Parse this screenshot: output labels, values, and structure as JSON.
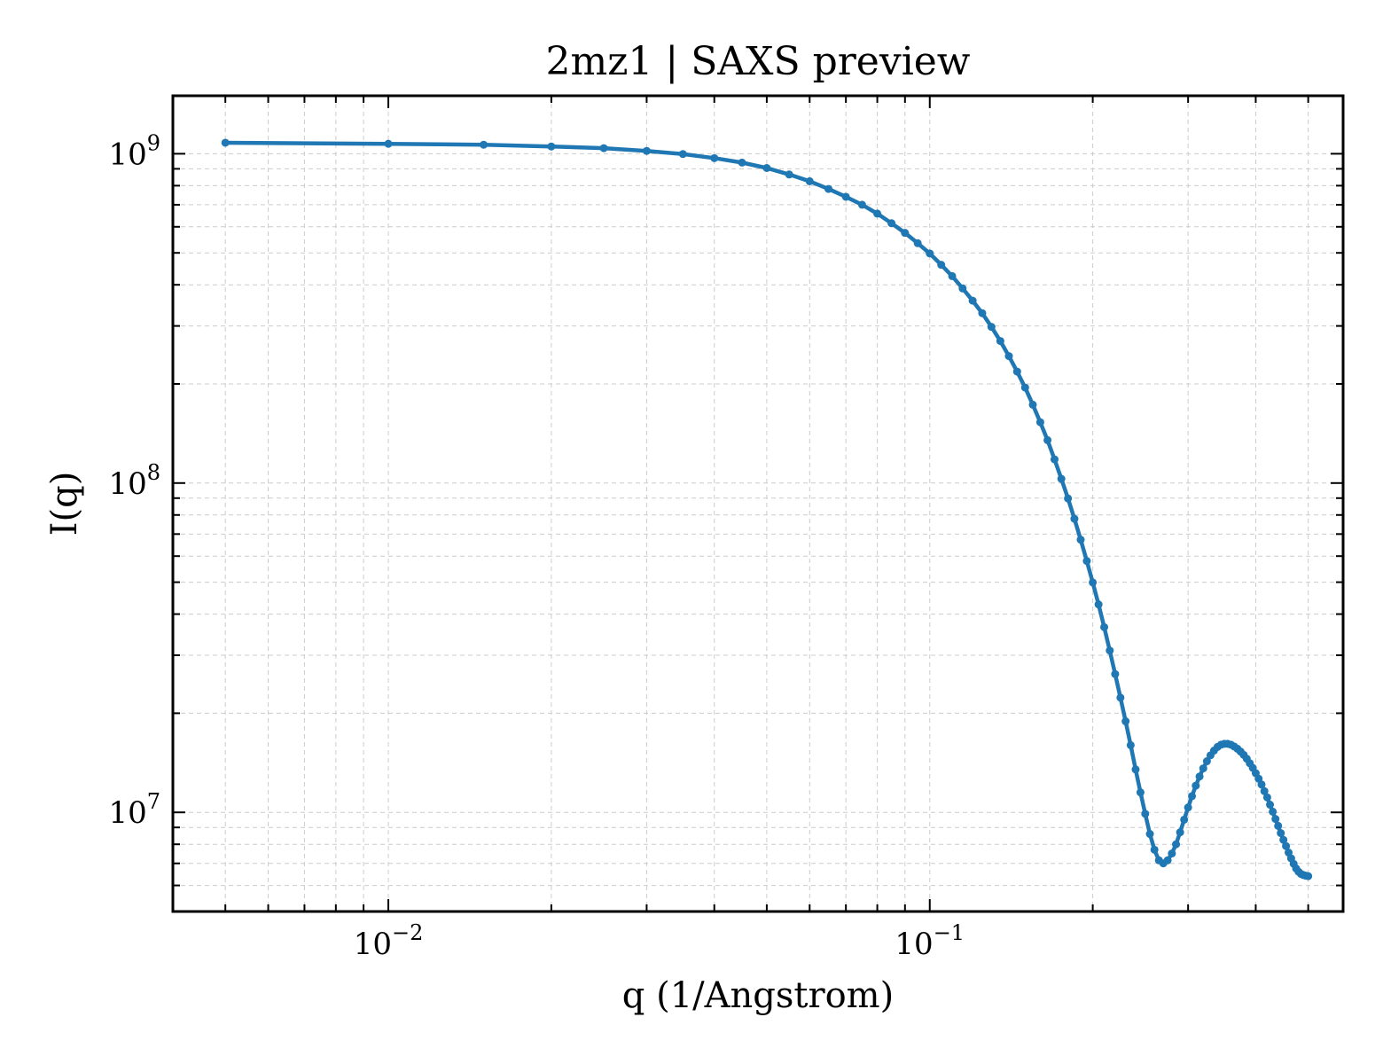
{
  "chart_data": {
    "type": "line",
    "title": "2mz1 | SAXS preview",
    "xlabel": "q (1/Angstrom)",
    "ylabel": "I(q)",
    "xscale": "log",
    "yscale": "log",
    "xlim": [
      0.004,
      0.58
    ],
    "ylim": [
      5000000,
      1500000000
    ],
    "grid": true,
    "grid_style": "dashed major and minor",
    "markers": true,
    "colors": {
      "series": "#1f77b4",
      "grid": "#cccccc",
      "axes": "#000000"
    },
    "x_ticks": [
      {
        "base": "10",
        "exp": "−2",
        "value": 0.01
      },
      {
        "base": "10",
        "exp": "−1",
        "value": 0.1
      }
    ],
    "y_ticks": [
      {
        "base": "10",
        "exp": "7",
        "value": 10000000
      },
      {
        "base": "10",
        "exp": "8",
        "value": 100000000
      },
      {
        "base": "10",
        "exp": "9",
        "value": 1000000000
      }
    ],
    "series": [
      {
        "color": "#1f77b4",
        "x": [
          0.005,
          0.01,
          0.015,
          0.02,
          0.025,
          0.03,
          0.035,
          0.04,
          0.045,
          0.05,
          0.055,
          0.06,
          0.065,
          0.07,
          0.075,
          0.08,
          0.085,
          0.09,
          0.095,
          0.1,
          0.105,
          0.11,
          0.115,
          0.12,
          0.125,
          0.13,
          0.135,
          0.14,
          0.145,
          0.15,
          0.155,
          0.16,
          0.165,
          0.17,
          0.175,
          0.18,
          0.185,
          0.19,
          0.195,
          0.2,
          0.205,
          0.21,
          0.215,
          0.22,
          0.225,
          0.23,
          0.235,
          0.24,
          0.245,
          0.25,
          0.255,
          0.26,
          0.265,
          0.27,
          0.275,
          0.28,
          0.285,
          0.29,
          0.295,
          0.3,
          0.305,
          0.31,
          0.315,
          0.32,
          0.325,
          0.33,
          0.335,
          0.34,
          0.345,
          0.35,
          0.355,
          0.36,
          0.365,
          0.37,
          0.375,
          0.38,
          0.385,
          0.39,
          0.395,
          0.4,
          0.405,
          0.41,
          0.415,
          0.42,
          0.425,
          0.43,
          0.435,
          0.44,
          0.445,
          0.45,
          0.455,
          0.46,
          0.465,
          0.47,
          0.475,
          0.48,
          0.485,
          0.49,
          0.495,
          0.5
        ],
        "y": [
          1080000000,
          1072000000,
          1065000000,
          1052000000,
          1040000000,
          1020000000,
          998000000,
          970000000,
          940000000,
          905000000,
          865000000,
          825000000,
          782000000,
          740000000,
          700000000,
          658000000,
          615000000,
          575000000,
          535000000,
          498000000,
          460000000,
          425000000,
          390000000,
          358000000,
          328000000,
          298000000,
          270000000,
          243000000,
          218000000,
          195000000,
          173000000,
          153000000,
          135000000,
          118000000,
          103000000,
          89800000,
          77900000,
          67300000,
          58000000,
          49900000,
          42800000,
          36500000,
          31000000,
          26300000,
          22300000,
          18900000,
          16000000,
          13500000,
          11500000,
          9900000,
          8600000,
          7700000,
          7150000,
          7000000,
          7150000,
          7500000,
          8000000,
          8700000,
          9500000,
          10350000,
          11200000,
          12050000,
          12850000,
          13600000,
          14300000,
          14900000,
          15400000,
          15800000,
          16050000,
          16150000,
          16150000,
          16050000,
          15850000,
          15600000,
          15300000,
          14950000,
          14550000,
          14100000,
          13650000,
          13150000,
          12650000,
          12150000,
          11600000,
          11100000,
          10550000,
          10050000,
          9550000,
          9100000,
          8650000,
          8250000,
          7900000,
          7550000,
          7250000,
          6980000,
          6750000,
          6600000,
          6500000,
          6450000,
          6420000,
          6400000
        ]
      }
    ]
  }
}
